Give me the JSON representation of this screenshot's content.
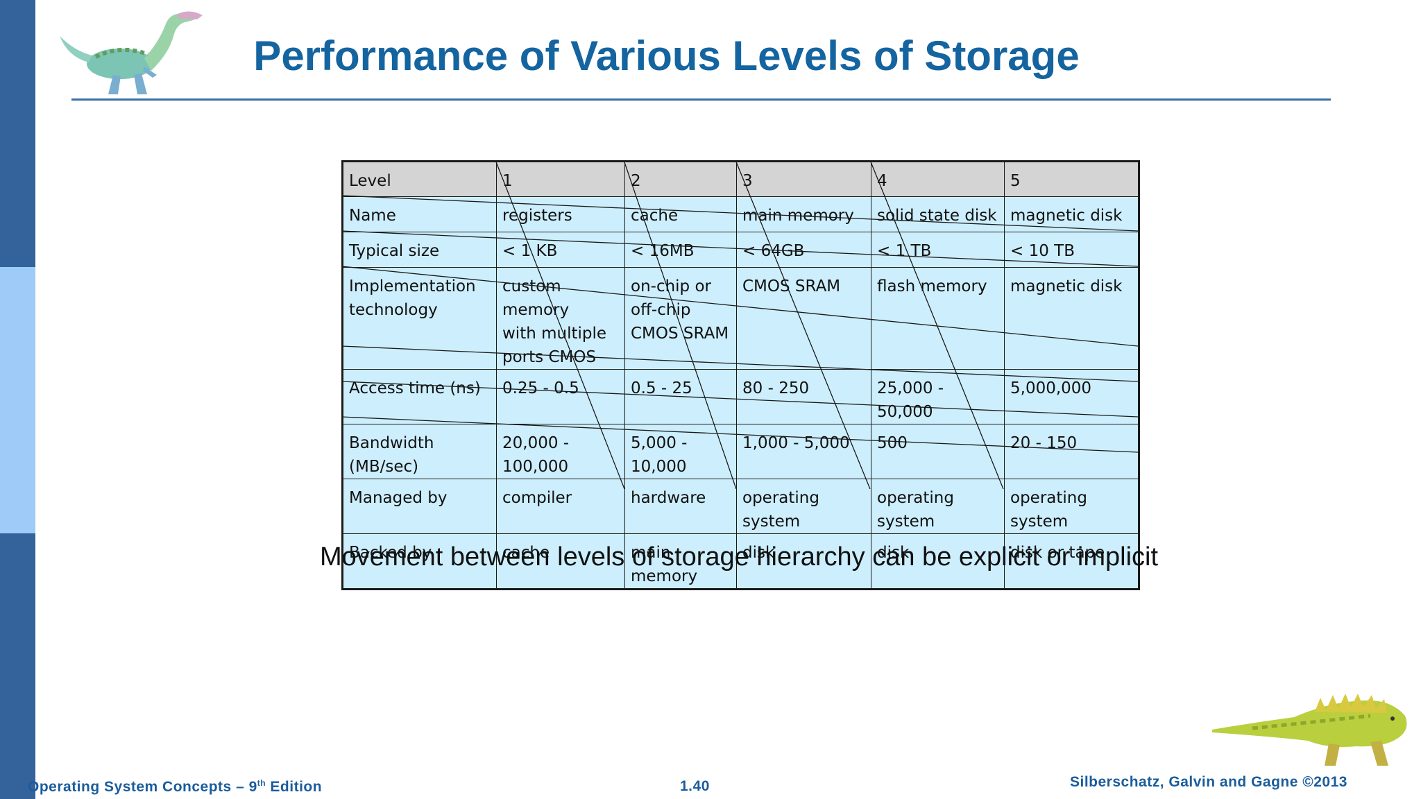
{
  "slide": {
    "title": "Performance of Various Levels of Storage",
    "caption": "Movement between levels of storage hierarchy can be explicit or implicit"
  },
  "table": {
    "header": [
      "Level",
      "1",
      "2",
      "3",
      "4",
      "5"
    ],
    "rows": [
      [
        "Name",
        "registers",
        "cache",
        "main memory",
        "solid state disk",
        "magnetic disk"
      ],
      [
        "Typical size",
        "< 1 KB",
        "< 16MB",
        "< 64GB",
        "< 1 TB",
        "< 10 TB"
      ],
      [
        "Implementation\ntechnology",
        "custom memory\nwith multiple\nports CMOS",
        "on-chip or\noff-chip\nCMOS SRAM",
        "CMOS SRAM",
        "flash memory",
        "magnetic disk"
      ],
      [
        "Access time (ns)",
        "0.25 - 0.5",
        "0.5 - 25",
        "80 - 250",
        "25,000 - 50,000",
        "5,000,000"
      ],
      [
        "Bandwidth (MB/sec)",
        "20,000 - 100,000",
        "5,000 - 10,000",
        "1,000 - 5,000",
        "500",
        "20 - 150"
      ],
      [
        "Managed by",
        "compiler",
        "hardware",
        "operating system",
        "operating system",
        "operating system"
      ],
      [
        "Backed by",
        "cache",
        "main memory",
        "disk",
        "disk",
        "disk or tape"
      ]
    ]
  },
  "footer": {
    "left_prefix": "Operating System Concepts – 9",
    "left_sup": "th",
    "left_suffix": " Edition",
    "page": "1.40",
    "right": "Silberschatz, Galvin and Gagne ©2013"
  },
  "colors": {
    "title": "#1464a0",
    "sidebar_dark": "#34629a",
    "sidebar_light": "#9ecbf7",
    "cell": "#cdeefc",
    "header_cell": "#d4d4d4"
  },
  "icons": [
    "dinosaur-top-icon",
    "dinosaur-bottom-icon"
  ]
}
